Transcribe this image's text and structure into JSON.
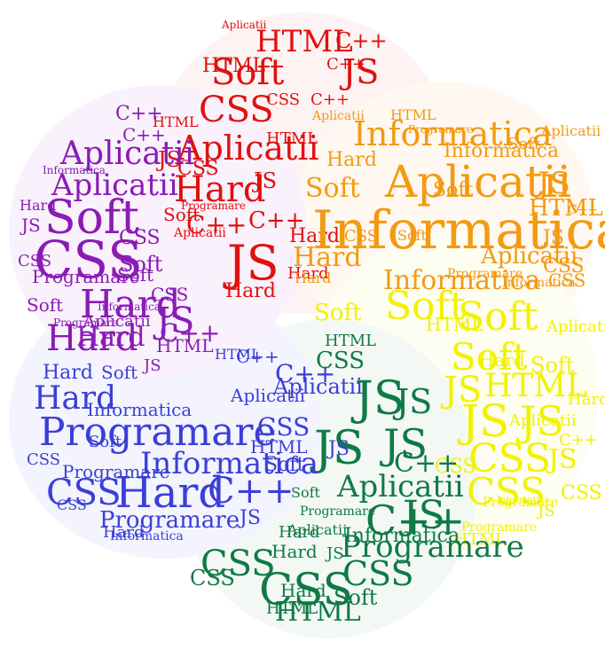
{
  "colors": {
    "red": "#e01010",
    "orange": "#f39a12",
    "yellow": "#f2f200",
    "green": "#0f7a45",
    "blue": "#3b3fd6",
    "purple": "#8a1cb5"
  },
  "words": {
    "red": [
      "HTML",
      "C++",
      "Aplicatii",
      "Soft",
      "JS",
      "CSS",
      "HTML",
      "C++",
      "Aplicatii",
      "HTML",
      "Hard",
      "JS",
      "C++",
      "JS",
      "CSS",
      "Hard",
      "Soft",
      "Programare",
      "Hard",
      "C++",
      "JS",
      "Aplicatii",
      "Hard",
      "CSS",
      "HTML",
      "C++"
    ],
    "orange": [
      "Informatica",
      "Aplicatii",
      "Informatica",
      "Soft",
      "JS",
      "HTML",
      "Informatica",
      "Hard",
      "CSS",
      "Soft",
      "Aplicatii",
      "JS",
      "Hard",
      "Informatica",
      "Programare",
      "HTML",
      "Aplicatii",
      "CSS",
      "Soft",
      "Hard",
      "CSS",
      "Informatica",
      "Aplicatii",
      "Programare",
      "C++",
      "Soft"
    ],
    "yellow": [
      "Soft",
      "Soft",
      "Soft",
      "JS",
      "HTML",
      "JS",
      "JS",
      "CSS",
      "CSS",
      "JS",
      "HTML",
      "Soft",
      "Aplicatii",
      "Programare",
      "Informatica",
      "CSS",
      "JS",
      "Hard",
      "Soft",
      "C++",
      "HTML",
      "CSS",
      "Aplicatii",
      "Programare",
      "Hard"
    ],
    "green": [
      "JS",
      "JS",
      "JS",
      "JS",
      "HTML",
      "Aplicatii",
      "C++",
      "JS",
      "Programare",
      "CSS",
      "CSS",
      "CSS",
      "HTML",
      "Hard",
      "Soft",
      "CSS",
      "Informatica",
      "HTML",
      "C++",
      "Aplicatii",
      "Programare",
      "Hard",
      "Soft",
      "CSS",
      "JS",
      "Hard"
    ],
    "blue": [
      "Programare",
      "Hard",
      "C++",
      "Informatica",
      "CSS",
      "Hard",
      "Programare",
      "Soft",
      "HTML",
      "C++",
      "CSS",
      "JS",
      "Aplicatii",
      "Informatica",
      "CSS",
      "Hard",
      "Programare",
      "Soft",
      "HTML",
      "JS",
      "C++",
      "Aplicatii",
      "Informatica",
      "CSS",
      "Hard",
      "Soft"
    ],
    "purple": [
      "CSS",
      "Soft",
      "Hard",
      "Hard",
      "Aplicatii",
      "Aplicatii",
      "JS",
      "CSS",
      "C++",
      "Programare",
      "Informatica",
      "HTML",
      "Soft",
      "JS",
      "Hard",
      "CSS",
      "C++",
      "Soft",
      "Aplicatii",
      "Informatica",
      "CSS",
      "JS",
      "Hard",
      "C++",
      "Programare",
      "Soft"
    ]
  }
}
